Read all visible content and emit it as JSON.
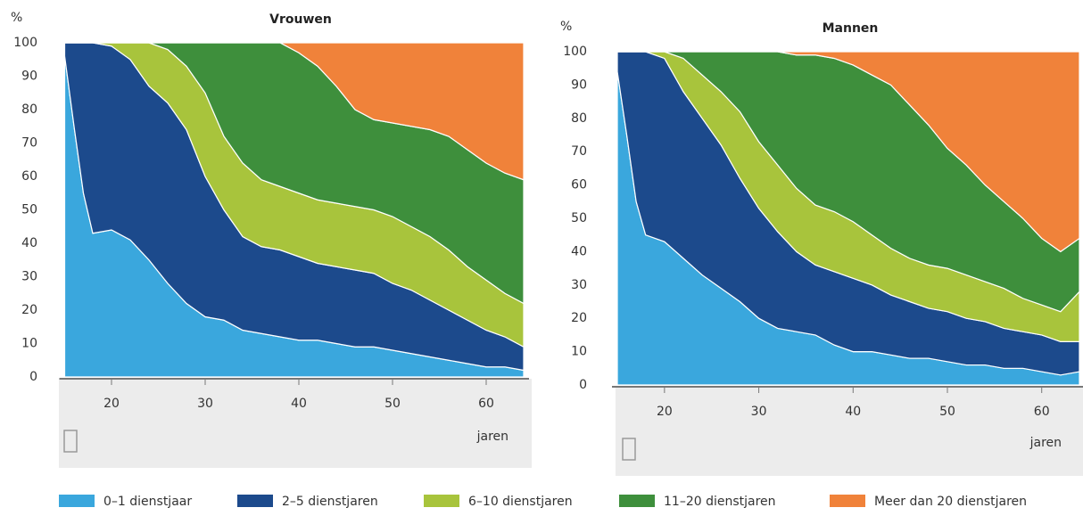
{
  "chart_data": [
    {
      "type": "area",
      "title": "Vrouwen",
      "y_label": "%",
      "x_label": "jaren",
      "x": [
        15,
        16,
        17,
        18,
        20,
        22,
        24,
        26,
        28,
        30,
        32,
        34,
        36,
        38,
        40,
        42,
        44,
        46,
        48,
        50,
        52,
        54,
        56,
        58,
        60,
        62,
        64
      ],
      "xlim": [
        15,
        64
      ],
      "xticks": [
        20,
        30,
        40,
        50,
        60
      ],
      "ylim": [
        0,
        100
      ],
      "yticks": [
        0,
        10,
        20,
        30,
        40,
        50,
        60,
        70,
        80,
        90,
        100
      ],
      "series": [
        {
          "name": "0–1 dienstjaar",
          "color": "#3aa7dd",
          "values": [
            96,
            75,
            55,
            43,
            44,
            41,
            35,
            28,
            22,
            18,
            17,
            14,
            13,
            12,
            11,
            11,
            10,
            9,
            9,
            8,
            7,
            6,
            5,
            4,
            3,
            3,
            2
          ]
        },
        {
          "name": "2–5 dienstjaren",
          "color": "#1c4a8c",
          "values": [
            4,
            25,
            45,
            57,
            55,
            54,
            52,
            54,
            52,
            42,
            33,
            28,
            26,
            26,
            25,
            23,
            23,
            23,
            22,
            20,
            19,
            17,
            15,
            13,
            11,
            9,
            7
          ]
        },
        {
          "name": "6–10 dienstjaren",
          "color": "#a8c43c",
          "values": [
            0,
            0,
            0,
            0,
            1,
            5,
            13,
            16,
            19,
            25,
            22,
            22,
            20,
            19,
            19,
            19,
            19,
            19,
            19,
            20,
            19,
            19,
            18,
            16,
            15,
            13,
            13
          ]
        },
        {
          "name": "11–20 dienstjaren",
          "color": "#3e8f3c",
          "values": [
            0,
            0,
            0,
            0,
            0,
            0,
            0,
            2,
            7,
            15,
            28,
            36,
            41,
            43,
            42,
            40,
            35,
            29,
            27,
            28,
            30,
            32,
            34,
            35,
            35,
            36,
            37
          ]
        },
        {
          "name": "Meer dan 20 dienstjaren",
          "color": "#f0823a",
          "values": [
            0,
            0,
            0,
            0,
            0,
            0,
            0,
            0,
            0,
            0,
            0,
            0,
            0,
            0,
            3,
            7,
            13,
            20,
            23,
            24,
            25,
            26,
            28,
            32,
            36,
            39,
            41
          ]
        }
      ]
    },
    {
      "type": "area",
      "title": "Mannen",
      "y_label": "%",
      "x_label": "jaren",
      "x": [
        15,
        16,
        17,
        18,
        20,
        22,
        24,
        26,
        28,
        30,
        32,
        34,
        36,
        38,
        40,
        42,
        44,
        46,
        48,
        50,
        52,
        54,
        56,
        58,
        60,
        62,
        64
      ],
      "xlim": [
        15,
        64
      ],
      "xticks": [
        20,
        30,
        40,
        50,
        60
      ],
      "ylim": [
        0,
        100
      ],
      "yticks": [
        0,
        10,
        20,
        30,
        40,
        50,
        60,
        70,
        80,
        90,
        100
      ],
      "series": [
        {
          "name": "0–1 dienstjaar",
          "color": "#3aa7dd",
          "values": [
            94,
            75,
            55,
            45,
            43,
            38,
            33,
            29,
            25,
            20,
            17,
            16,
            15,
            12,
            10,
            10,
            9,
            8,
            8,
            7,
            6,
            6,
            5,
            5,
            4,
            3,
            4
          ]
        },
        {
          "name": "2–5 dienstjaren",
          "color": "#1c4a8c",
          "values": [
            6,
            25,
            45,
            55,
            55,
            50,
            47,
            43,
            37,
            33,
            29,
            24,
            21,
            22,
            22,
            20,
            18,
            17,
            15,
            15,
            14,
            13,
            12,
            11,
            11,
            10,
            9
          ]
        },
        {
          "name": "6–10 dienstjaren",
          "color": "#a8c43c",
          "values": [
            0,
            0,
            0,
            0,
            2,
            10,
            13,
            16,
            20,
            20,
            20,
            19,
            18,
            18,
            17,
            15,
            14,
            13,
            13,
            13,
            13,
            12,
            12,
            10,
            9,
            9,
            15
          ]
        },
        {
          "name": "11–20 dienstjaren",
          "color": "#3e8f3c",
          "values": [
            0,
            0,
            0,
            0,
            0,
            2,
            7,
            12,
            18,
            27,
            34,
            40,
            45,
            46,
            47,
            48,
            49,
            46,
            42,
            36,
            33,
            29,
            26,
            24,
            20,
            18,
            16
          ]
        },
        {
          "name": "Meer dan 20 dienstjaren",
          "color": "#f0823a",
          "values": [
            0,
            0,
            0,
            0,
            0,
            0,
            0,
            0,
            0,
            0,
            0,
            1,
            1,
            2,
            4,
            7,
            10,
            16,
            22,
            29,
            34,
            40,
            45,
            50,
            56,
            60,
            56
          ]
        }
      ]
    }
  ]
}
